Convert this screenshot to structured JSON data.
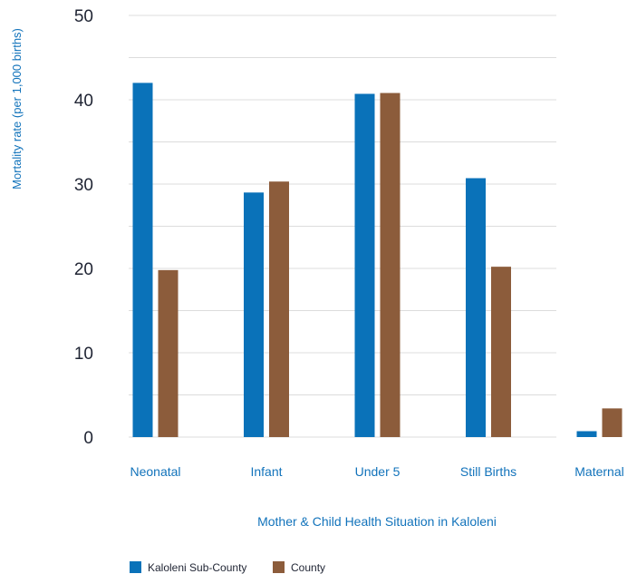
{
  "chart_data": {
    "type": "bar",
    "categories": [
      "Neonatal",
      "Infant",
      "Under 5",
      "Still Births",
      "Maternal"
    ],
    "series": [
      {
        "name": "Kaloleni Sub-County",
        "values": [
          42,
          29,
          40.7,
          30.7,
          0.7
        ],
        "color": "#0a72b9"
      },
      {
        "name": "County",
        "values": [
          19.8,
          30.3,
          40.8,
          20.2,
          3.4
        ],
        "color": "#8c5c3b"
      }
    ],
    "xlabel": "Mother & Child Health Situation in Kaloleni",
    "ylabel": "Mortality rate (per 1,000 births)",
    "ylim": [
      0,
      50
    ],
    "yticks": [
      0,
      10,
      20,
      30,
      40,
      50
    ],
    "grid": true,
    "legend_position": "bottom-left"
  }
}
